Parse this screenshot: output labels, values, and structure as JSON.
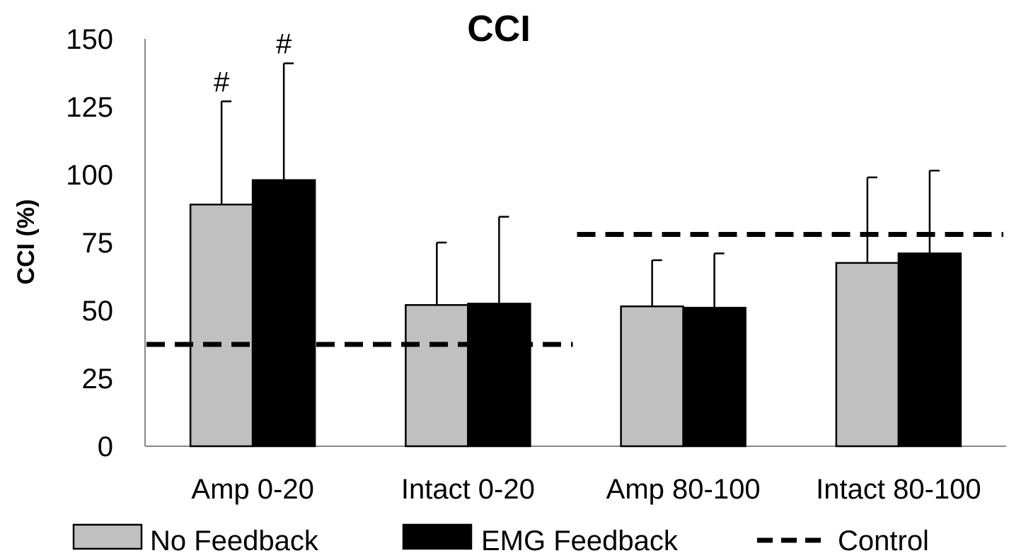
{
  "chart_data": {
    "type": "bar",
    "title": "CCI",
    "ylabel": "CCI (%)",
    "xlabel": "",
    "ylim": [
      0,
      150
    ],
    "yticks": [
      0,
      25,
      50,
      75,
      100,
      125,
      150
    ],
    "categories": [
      "Amp 0-20",
      "Intact 0-20",
      "Amp 80-100",
      "Intact 80-100"
    ],
    "series": [
      {
        "name": "No Feedback",
        "color": "#c0c0c0",
        "values": [
          89,
          52,
          51.5,
          67.5
        ],
        "error": [
          38,
          23,
          17,
          31.5
        ],
        "annotations": [
          "#",
          "",
          "",
          ""
        ]
      },
      {
        "name": "EMG Feedback",
        "color": "#000000",
        "values": [
          98,
          52.5,
          51,
          71
        ],
        "error": [
          43,
          32,
          20,
          30.5
        ],
        "annotations": [
          "#",
          "",
          "",
          ""
        ]
      }
    ],
    "reference_lines": [
      {
        "name": "Control",
        "style": "dashed",
        "segments": [
          {
            "from_category": "Amp 0-20",
            "to_category": "Intact 0-20",
            "value": 37.5
          },
          {
            "from_category": "Amp 80-100",
            "to_category": "Intact 80-100",
            "value": 78
          }
        ]
      }
    ],
    "legend": {
      "position": "bottom",
      "entries": [
        "No Feedback",
        "EMG Feedback",
        "Control"
      ]
    },
    "grid": false
  }
}
